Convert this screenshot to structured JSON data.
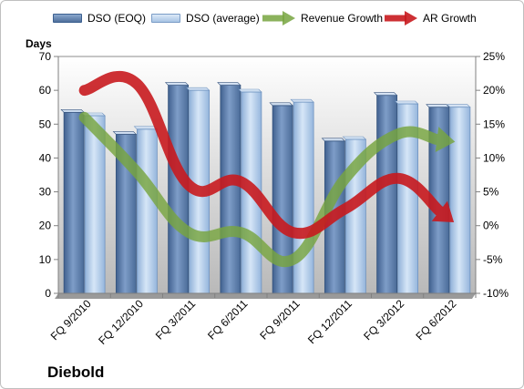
{
  "chart_data": {
    "type": "bar",
    "categories": [
      "FQ 9/2010",
      "FQ 12/2010",
      "FQ 3/2011",
      "FQ 6/2011",
      "FQ 9/2011",
      "FQ 12/2011",
      "FQ 3/2012",
      "FQ 6/2012"
    ],
    "series": [
      {
        "name": "DSO (EOQ)",
        "type": "bar",
        "axis": "left",
        "color": "#5a7dab",
        "values": [
          53.5,
          47,
          61.5,
          61.5,
          55.5,
          45,
          58.5,
          55
        ]
      },
      {
        "name": "DSO (average)",
        "type": "bar",
        "axis": "left",
        "color": "#a9c5e6",
        "values": [
          52.5,
          48.5,
          60,
          59.5,
          56.5,
          45.5,
          56,
          55
        ]
      },
      {
        "name": "Revenue Growth",
        "type": "line",
        "axis": "right",
        "color": "#77a53f",
        "values": [
          16,
          8,
          -1,
          -1,
          -5,
          7,
          13.5,
          12.5
        ]
      },
      {
        "name": "AR Growth",
        "type": "line",
        "axis": "right",
        "color": "#c8191e",
        "values": [
          20,
          21,
          6,
          6.5,
          -1,
          2.5,
          7,
          1
        ]
      }
    ],
    "ylabel": "Days",
    "ylim": [
      0,
      70
    ],
    "yticks": [
      0,
      10,
      20,
      30,
      40,
      50,
      60,
      70
    ],
    "y2lim": [
      -10,
      25
    ],
    "y2ticks": [
      "-10%",
      "-5%",
      "0%",
      "5%",
      "10%",
      "15%",
      "20%",
      "25%"
    ],
    "legend": "top",
    "grid": false
  },
  "company": "Diebold"
}
